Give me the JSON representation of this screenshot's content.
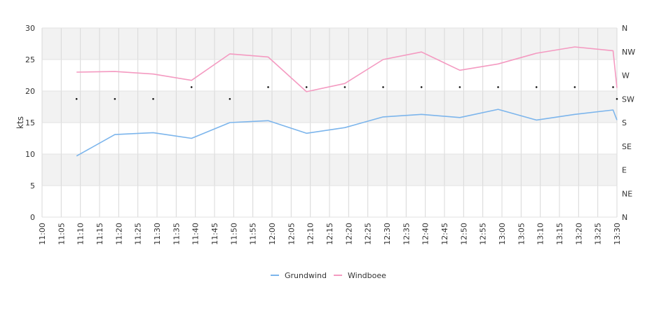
{
  "chart_data": {
    "type": "line",
    "ylabel": "kts",
    "ylim": [
      0,
      30
    ],
    "yticks": [
      0,
      5,
      10,
      15,
      20,
      25,
      30
    ],
    "x_ticks": [
      "11:00",
      "11:05",
      "11:10",
      "11:15",
      "11:20",
      "11:25",
      "11:30",
      "11:35",
      "11:40",
      "11:45",
      "11:50",
      "11:55",
      "12:00",
      "12:05",
      "12:10",
      "12:15",
      "12:20",
      "12:25",
      "12:30",
      "12:35",
      "12:40",
      "12:45",
      "12:50",
      "12:55",
      "13:00",
      "13:05",
      "13:10",
      "13:15",
      "13:20",
      "13:25",
      "13:30"
    ],
    "right_axis_labels": [
      "N",
      "NE",
      "E",
      "SE",
      "S",
      "SW",
      "W",
      "NW",
      "N"
    ],
    "grid": true,
    "legend_position": "bottom",
    "series": [
      {
        "name": "Grundwind",
        "color": "#7cb5ec",
        "points": [
          {
            "t": "11:09",
            "v": 9.7
          },
          {
            "t": "11:19",
            "v": 13.1
          },
          {
            "t": "11:29",
            "v": 13.4
          },
          {
            "t": "11:39",
            "v": 12.5
          },
          {
            "t": "11:49",
            "v": 15.0
          },
          {
            "t": "11:59",
            "v": 15.3
          },
          {
            "t": "12:09",
            "v": 13.3
          },
          {
            "t": "12:19",
            "v": 14.2
          },
          {
            "t": "12:29",
            "v": 15.9
          },
          {
            "t": "12:39",
            "v": 16.3
          },
          {
            "t": "12:49",
            "v": 15.8
          },
          {
            "t": "12:59",
            "v": 17.1
          },
          {
            "t": "13:09",
            "v": 15.4
          },
          {
            "t": "13:19",
            "v": 16.3
          },
          {
            "t": "13:29",
            "v": 17.0
          },
          {
            "t": "13:30",
            "v": 15.4
          }
        ]
      },
      {
        "name": "Windboee",
        "color": "#f49ac1",
        "points": [
          {
            "t": "11:09",
            "v": 23.0
          },
          {
            "t": "11:19",
            "v": 23.1
          },
          {
            "t": "11:29",
            "v": 22.7
          },
          {
            "t": "11:39",
            "v": 21.7
          },
          {
            "t": "11:49",
            "v": 25.9
          },
          {
            "t": "11:59",
            "v": 25.4
          },
          {
            "t": "12:09",
            "v": 19.9
          },
          {
            "t": "12:19",
            "v": 21.2
          },
          {
            "t": "12:29",
            "v": 25.0
          },
          {
            "t": "12:39",
            "v": 26.2
          },
          {
            "t": "12:49",
            "v": 23.3
          },
          {
            "t": "12:59",
            "v": 24.3
          },
          {
            "t": "13:09",
            "v": 26.0
          },
          {
            "t": "13:19",
            "v": 27.0
          },
          {
            "t": "13:29",
            "v": 26.4
          },
          {
            "t": "13:30",
            "v": 20.5
          }
        ]
      }
    ],
    "direction_markers": [
      {
        "t": "11:09",
        "dir": "SW"
      },
      {
        "t": "11:19",
        "dir": "SW"
      },
      {
        "t": "11:29",
        "dir": "SW"
      },
      {
        "t": "11:39",
        "dir": "WSW"
      },
      {
        "t": "11:49",
        "dir": "SW"
      },
      {
        "t": "11:59",
        "dir": "WSW"
      },
      {
        "t": "12:09",
        "dir": "WSW"
      },
      {
        "t": "12:19",
        "dir": "WSW"
      },
      {
        "t": "12:29",
        "dir": "WSW"
      },
      {
        "t": "12:39",
        "dir": "WSW"
      },
      {
        "t": "12:49",
        "dir": "WSW"
      },
      {
        "t": "12:59",
        "dir": "WSW"
      },
      {
        "t": "13:09",
        "dir": "WSW"
      },
      {
        "t": "13:19",
        "dir": "WSW"
      },
      {
        "t": "13:29",
        "dir": "WSW"
      },
      {
        "t": "13:30",
        "dir": "SW"
      }
    ]
  }
}
